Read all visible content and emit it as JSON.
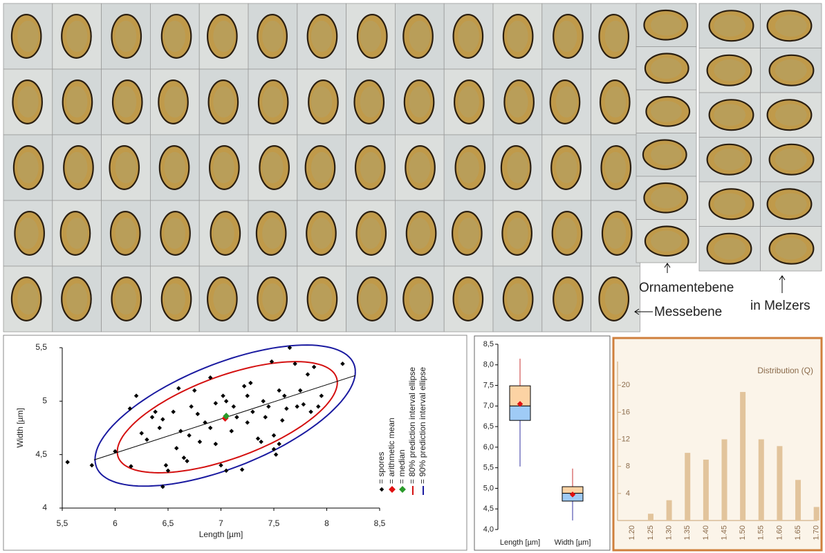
{
  "photo_labels": [
    "Ornamentebene",
    "Messebene",
    "in Melzers"
  ],
  "chart_data": [
    {
      "type": "scatter",
      "x_label": "Length [µm]",
      "y_label": "Width [µm]",
      "xlim": [
        5.5,
        8.5
      ],
      "ylim": [
        4,
        5.5
      ],
      "xticks": [
        {
          "value": 5.5,
          "label": "5,5"
        },
        6,
        {
          "value": 6.5,
          "label": "6,5"
        },
        7,
        {
          "value": 7.5,
          "label": "7,5"
        },
        8,
        {
          "value": 8.5,
          "label": "8,5"
        }
      ],
      "yticks": [
        4,
        {
          "value": 4.5,
          "label": "4,5"
        },
        5,
        {
          "value": 5.5,
          "label": "5,5"
        }
      ],
      "series": [
        {
          "name": "= spores",
          "color": "#000000",
          "marker": "dot",
          "x": [
            5.55,
            5.78,
            6.0,
            6.15,
            6.14,
            6.2,
            6.25,
            6.3,
            6.35,
            6.38,
            6.42,
            6.45,
            6.45,
            6.48,
            6.5,
            6.55,
            6.58,
            6.6,
            6.62,
            6.65,
            6.68,
            6.7,
            6.72,
            6.75,
            6.78,
            6.8,
            6.85,
            6.9,
            6.9,
            6.95,
            7.0,
            7.02,
            7.05,
            7.05,
            7.1,
            7.12,
            7.15,
            7.2,
            7.22,
            7.25,
            7.28,
            7.3,
            7.35,
            7.38,
            7.4,
            7.42,
            7.45,
            7.48,
            7.5,
            7.52,
            7.55,
            7.58,
            7.6,
            7.62,
            7.65,
            7.7,
            7.72,
            7.75,
            7.78,
            7.82,
            7.85,
            7.88,
            7.92,
            7.95,
            8.15,
            7.55,
            7.5,
            6.95,
            7.25
          ],
          "y": [
            4.43,
            4.4,
            4.53,
            4.39,
            4.93,
            5.05,
            4.7,
            4.64,
            4.85,
            4.9,
            4.75,
            4.83,
            4.2,
            4.4,
            4.35,
            4.9,
            4.56,
            5.12,
            4.72,
            4.47,
            4.44,
            4.68,
            4.95,
            5.1,
            4.88,
            4.62,
            4.8,
            5.22,
            4.75,
            4.6,
            4.4,
            5.05,
            5.0,
            4.35,
            4.72,
            4.95,
            4.85,
            4.36,
            5.14,
            4.8,
            5.17,
            4.9,
            4.65,
            4.62,
            5.0,
            4.85,
            4.95,
            5.37,
            4.68,
            4.5,
            5.1,
            4.82,
            5.05,
            4.93,
            5.5,
            5.35,
            4.95,
            5.1,
            4.97,
            5.25,
            4.9,
            5.32,
            4.95,
            5.05,
            5.35,
            4.6,
            4.55,
            4.98,
            5.05
          ]
        },
        {
          "name": "= arithmetic mean",
          "color": "#e01010",
          "marker": "diamond",
          "x": [
            7.04
          ],
          "y": [
            4.84
          ]
        },
        {
          "name": "= median",
          "color": "#2a9a2a",
          "marker": "diamond",
          "x": [
            7.05
          ],
          "y": [
            4.86
          ]
        }
      ],
      "ellipses": [
        {
          "name": "= 80% prediction interval ellipse",
          "color": "#d41010",
          "center": [
            7.06,
            4.85
          ],
          "x_radius": 1.04,
          "y_radius": 0.52,
          "phase": 0.9
        },
        {
          "name": "= 90% prediction interval ellipse",
          "color": "#1a1aa0",
          "center": [
            7.04,
            4.865
          ],
          "x_radius": 1.23,
          "y_radius": 0.66,
          "phase": 0.9
        }
      ],
      "trend": {
        "x": [
          5.8,
          8.27
        ],
        "y": [
          4.45,
          5.24
        ],
        "color": "#000000"
      }
    },
    {
      "type": "box",
      "categories": [
        "Length [µm]",
        "Width [µm]"
      ],
      "ylim": [
        4,
        8.5
      ],
      "yticks": [
        {
          "value": 4,
          "label": "4,0"
        },
        {
          "value": 4.5,
          "label": "4,5"
        },
        {
          "value": 5,
          "label": "5,0"
        },
        {
          "value": 5.5,
          "label": "5,5"
        },
        {
          "value": 6,
          "label": "6,0"
        },
        {
          "value": 6.5,
          "label": "6,5"
        },
        {
          "value": 7,
          "label": "7,0"
        },
        {
          "value": 7.5,
          "label": "7,5"
        },
        {
          "value": 8,
          "label": "8,0"
        },
        {
          "value": 8.5,
          "label": "8,5"
        }
      ],
      "min": [
        5.53,
        4.22
      ],
      "q1": [
        6.65,
        4.69
      ],
      "median": [
        7.0,
        4.88
      ],
      "q3": [
        7.49,
        5.04
      ],
      "max": [
        8.15,
        5.48
      ],
      "mean": [
        7.05,
        4.85
      ],
      "upper_color": "#fcd3a4",
      "lower_color": "#9fcbf6",
      "upper_whisker_color": "#c83030",
      "lower_whisker_color": "#3030a0",
      "mean_color": "#e01010"
    },
    {
      "type": "bar",
      "title": "Distribution (Q)",
      "categories": [
        "1.20",
        "1.25",
        "1.30",
        "1.35",
        "1.40",
        "1.45",
        "1.50",
        "1.55",
        "1.60",
        "1.65",
        "1.70"
      ],
      "values": [
        0,
        1,
        3,
        10,
        9,
        12,
        19,
        12,
        11,
        6,
        2
      ],
      "color": "#e2c49c",
      "ylim": [
        0,
        23.5
      ],
      "yticks": [
        4,
        8,
        12,
        16,
        20
      ]
    }
  ]
}
